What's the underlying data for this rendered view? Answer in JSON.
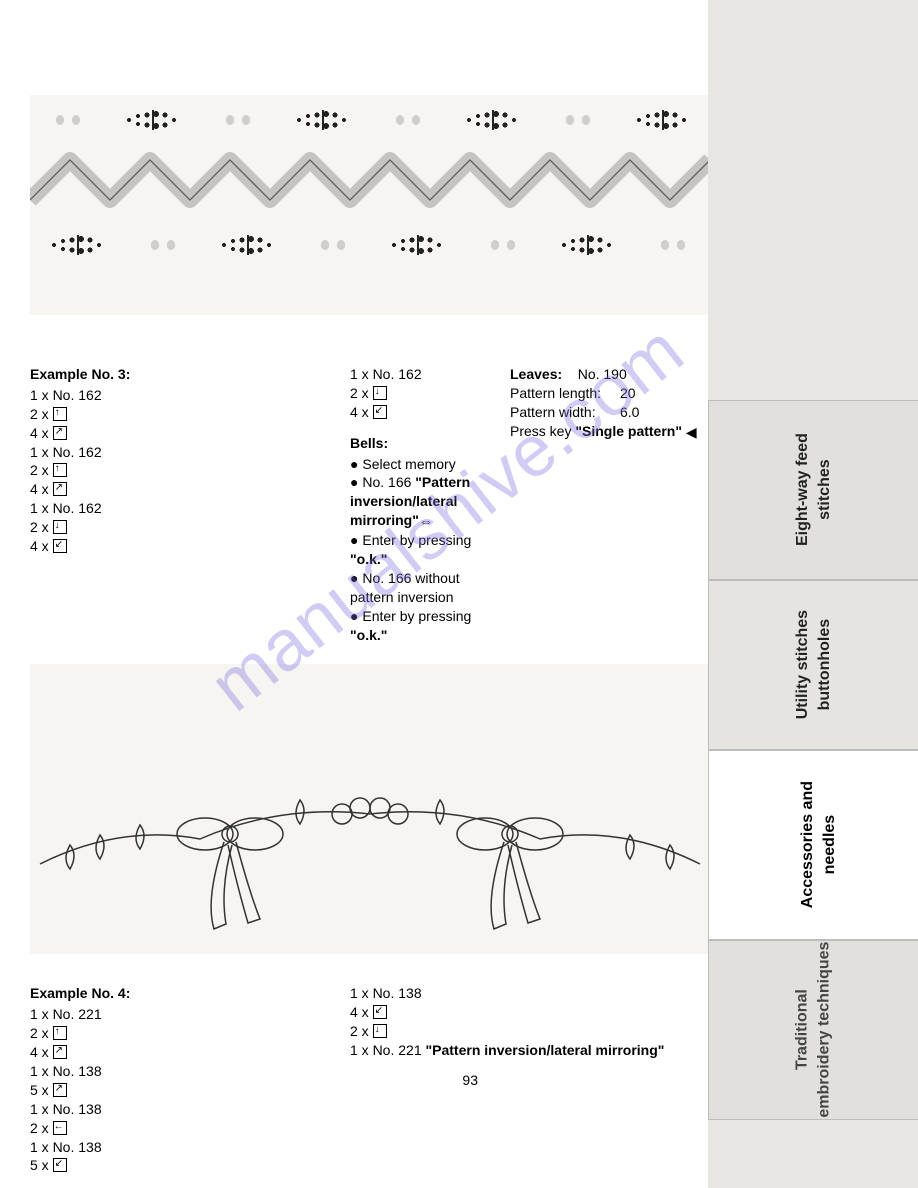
{
  "page_number": "93",
  "watermark": "manualshive.com",
  "tabs": [
    {
      "label": "Eight-way feed\nstitches"
    },
    {
      "label": "Utility stitches\nbuttonholes"
    },
    {
      "label": "Accessories and\nneedles"
    },
    {
      "label": "Traditional\nembroidery techniques"
    }
  ],
  "example3": {
    "title": "Example No. 3:",
    "colA": [
      {
        "text": "1 x No. 162"
      },
      {
        "text": "2 x ",
        "icon": "up"
      },
      {
        "text": "4 x ",
        "icon": "diag-ur"
      },
      {
        "text": "1 x No. 162"
      },
      {
        "text": "2 x ",
        "icon": "up"
      },
      {
        "text": "4 x ",
        "icon": "diag-ur"
      },
      {
        "text": "1 x No. 162"
      },
      {
        "text": "2 x ",
        "icon": "down"
      },
      {
        "text": "4 x ",
        "icon": "diag-dl"
      }
    ],
    "colB": [
      {
        "text": "1 x No. 162"
      },
      {
        "text": "2 x ",
        "icon": "down"
      },
      {
        "text": "4 x ",
        "icon": "diag-dl"
      }
    ],
    "bells": {
      "title": "Bells:",
      "items": [
        {
          "text": "Select memory"
        },
        {
          "pre": "No. 166 ",
          "bold": "\"Pattern inversion/lateral mirroring\"",
          "mirror_icon": true
        },
        {
          "pre": "Enter by pressing ",
          "bold": "\"o.k.\""
        },
        {
          "text": "No. 166 without pattern inversion"
        },
        {
          "pre": "Enter by pressing ",
          "bold": "\"o.k.\""
        }
      ]
    },
    "leaves": {
      "title": "Leaves:",
      "no": "No. 190",
      "rows": [
        {
          "k": "Pattern length:",
          "v": "20"
        },
        {
          "k": "Pattern width:",
          "v": "6.0"
        }
      ],
      "press_pre": "Press key ",
      "press_bold": "\"Single pattern\"",
      "single_icon": true
    }
  },
  "example4": {
    "title": "Example No. 4:",
    "colA": [
      {
        "text": "1 x No. 221"
      },
      {
        "text": "2 x ",
        "icon": "up"
      },
      {
        "text": "4 x ",
        "icon": "diag-ur"
      },
      {
        "text": "1 x No. 138"
      },
      {
        "text": "5 x ",
        "icon": "diag-ur"
      },
      {
        "text": "1 x No. 138"
      },
      {
        "text": "2 x ",
        "icon": "left"
      },
      {
        "text": "1 x No. 138"
      },
      {
        "text": "5 x ",
        "icon": "diag-dl"
      }
    ],
    "colB": [
      {
        "text": "1 x No. 138"
      },
      {
        "text": "4 x ",
        "icon": "diag-dl"
      },
      {
        "text": "2 x ",
        "icon": "down"
      },
      {
        "pre": "1 x No. 221 ",
        "bold": "\"Pattern inversion/lateral mirroring\""
      }
    ]
  },
  "colors": {
    "page_bg": "#ffffff",
    "tab_bg": "#e8e6e3",
    "tab_active_bg": "#ffffff",
    "text": "#000000",
    "watermark": "rgba(120,110,220,0.35)",
    "deco_bg": "#f7f5f2",
    "stroke": "#333333"
  }
}
